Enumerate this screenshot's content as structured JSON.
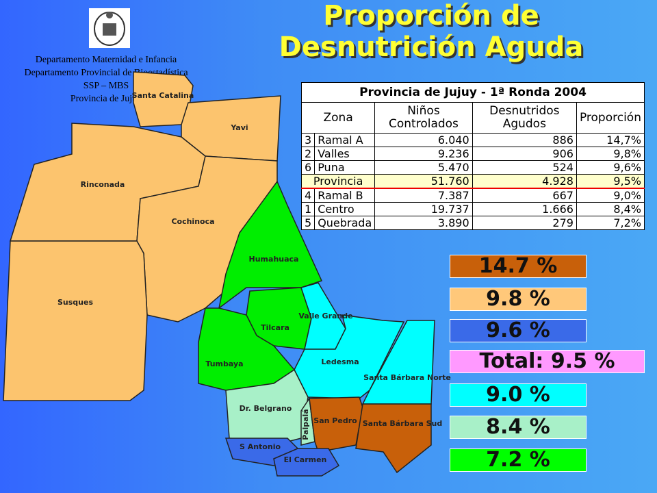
{
  "header": {
    "title_lines": [
      "Proporción de",
      "Desnutrición Aguda"
    ],
    "source_lines": [
      "Departamento Maternidad e Infancia",
      "Departamento Provincial de Bioestadística",
      "SSP – MBS",
      "Provincia de Jujuy"
    ]
  },
  "map": {
    "regions": [
      "Santa Catalina",
      "Yavi",
      "Rinconada",
      "Cochinoca",
      "Susques",
      "Humahuaca",
      "Tilcara",
      "Valle Grande",
      "Tumbaya",
      "Ledesma",
      "Santa Bárbara Norte",
      "Dr. Belgrano",
      "Palpalá",
      "San Pedro",
      "Santa Bárbara Sud",
      "S Antonio",
      "El Carmen"
    ]
  },
  "table": {
    "title": "Provincia de Jujuy - 1ª Ronda 2004",
    "headers": [
      "Zona",
      "Niños Controlados",
      "Desnutridos Agudos",
      "Proporción"
    ],
    "rows": [
      [
        "3",
        "Ramal A",
        "6.040",
        "886",
        "14,7%"
      ],
      [
        "2",
        "Valles",
        "9.236",
        "906",
        "9,8%"
      ],
      [
        "6",
        "Puna",
        "5.470",
        "524",
        "9,6%"
      ],
      [
        "Provincia",
        "51.760",
        "4.928",
        "9,5%"
      ],
      [
        "4",
        "Ramal B",
        "7.387",
        "667",
        "9,0%"
      ],
      [
        "1",
        "Centro",
        "19.737",
        "1.666",
        "8,4%"
      ],
      [
        "5",
        "Quebrada",
        "3.890",
        "279",
        "7,2%"
      ]
    ]
  },
  "legend": [
    {
      "label": "14.7 %",
      "color": "#c8600a"
    },
    {
      "label": "9.8 %",
      "color": "#ffc87a"
    },
    {
      "label": "9.6 %",
      "color": "#3a6ae8"
    },
    {
      "label": "Total: 9.5 %",
      "color": "#ff99ff"
    },
    {
      "label": "9.0 %",
      "color": "#00ffff"
    },
    {
      "label": "8.4 %",
      "color": "#a8f0c8"
    },
    {
      "label": "7.2 %",
      "color": "#00ff00"
    }
  ]
}
